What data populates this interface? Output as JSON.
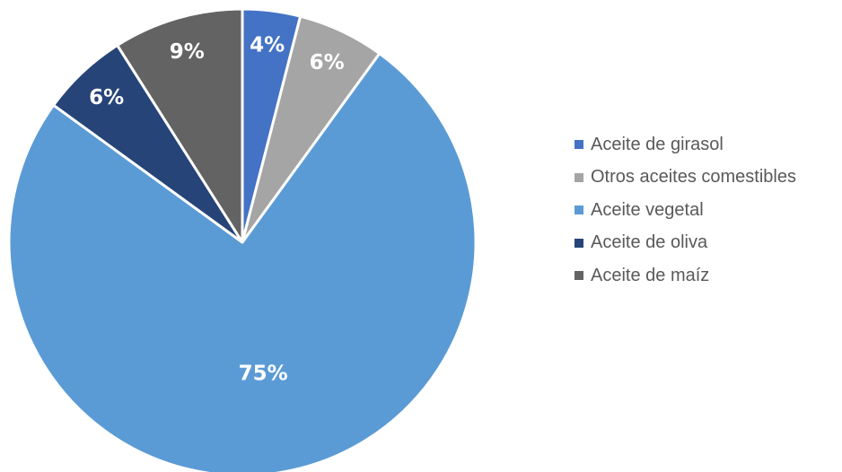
{
  "chart_data": {
    "type": "pie",
    "title": "",
    "start_angle_deg": 0,
    "direction": "clockwise",
    "legend_position": "right",
    "slices": [
      {
        "name": "Aceite de girasol",
        "value": 4,
        "label": "4%",
        "color": "#4472C4"
      },
      {
        "name": "Otros aceites comestibles",
        "value": 6,
        "label": "6%",
        "color": "#A5A5A5"
      },
      {
        "name": "Aceite vegetal",
        "value": 75,
        "label": "75%",
        "color": "#5B9BD5"
      },
      {
        "name": "Aceite de oliva",
        "value": 6,
        "label": "6%",
        "color": "#264478"
      },
      {
        "name": "Aceite de maíz",
        "value": 9,
        "label": "9%",
        "color": "#636363"
      }
    ]
  }
}
